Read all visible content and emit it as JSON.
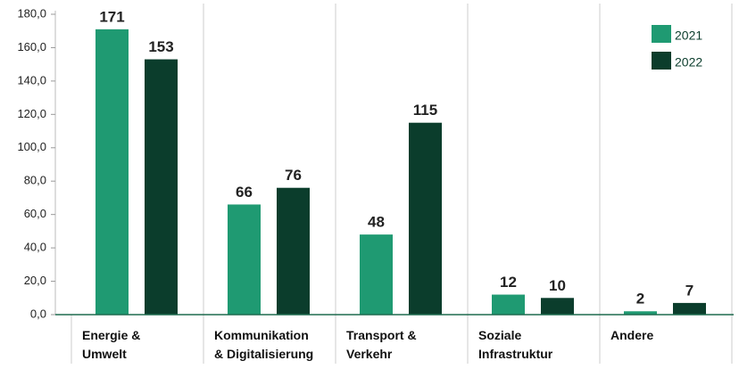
{
  "chart_data": {
    "type": "bar",
    "categories": [
      "Energie &\nUmwelt",
      "Kommunikation\n& Digitalisierung",
      "Transport &\nVerkehr",
      "Soziale\nInfrastruktur",
      "Andere"
    ],
    "series": [
      {
        "name": "2021",
        "color": "#1f9a72",
        "values": [
          171,
          66,
          48,
          12,
          2
        ]
      },
      {
        "name": "2022",
        "color": "#0b3d2c",
        "values": [
          153,
          76,
          115,
          10,
          7
        ]
      }
    ],
    "ylim": [
      0,
      180
    ],
    "yticks": [
      {
        "value": 0,
        "label": "0,0"
      },
      {
        "value": 20,
        "label": "20,0"
      },
      {
        "value": 40,
        "label": "40,0"
      },
      {
        "value": 60,
        "label": "60,0"
      },
      {
        "value": 80,
        "label": "80,0"
      },
      {
        "value": 100,
        "label": "100,0"
      },
      {
        "value": 120,
        "label": "120,0"
      },
      {
        "value": 140,
        "label": "140,0"
      },
      {
        "value": 160,
        "label": "160,0"
      },
      {
        "value": 180,
        "label": "180,0"
      }
    ],
    "legend": "top-right"
  }
}
